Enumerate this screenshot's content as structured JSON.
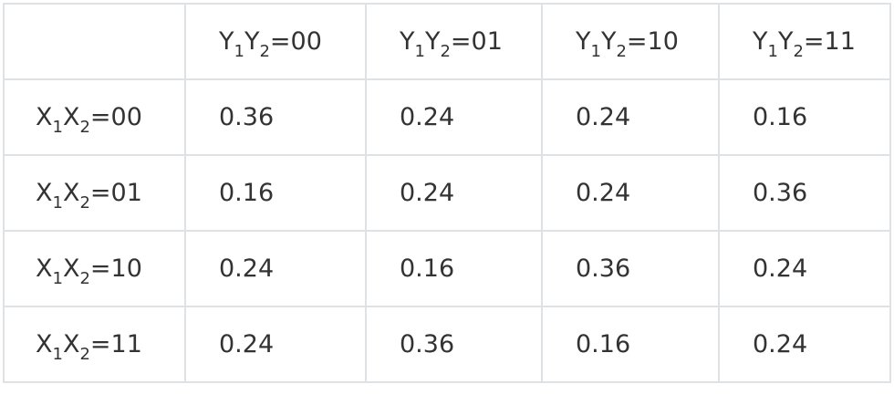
{
  "table": {
    "columns": [
      [
        "Y",
        "1",
        "Y",
        "2",
        "=00"
      ],
      [
        "Y",
        "1",
        "Y",
        "2",
        "=01"
      ],
      [
        "Y",
        "1",
        "Y",
        "2",
        "=10"
      ],
      [
        "Y",
        "1",
        "Y",
        "2",
        "=11"
      ]
    ],
    "rows": [
      {
        "label": [
          "X",
          "1",
          "X",
          "2",
          "=00"
        ],
        "cells": [
          0.36,
          0.24,
          0.24,
          0.16
        ]
      },
      {
        "label": [
          "X",
          "1",
          "X",
          "2",
          "=01"
        ],
        "cells": [
          0.16,
          0.24,
          0.24,
          0.36
        ]
      },
      {
        "label": [
          "X",
          "1",
          "X",
          "2",
          "=10"
        ],
        "cells": [
          0.24,
          0.16,
          0.36,
          0.24
        ]
      },
      {
        "label": [
          "X",
          "1",
          "X",
          "2",
          "=11"
        ],
        "cells": [
          0.24,
          0.36,
          0.16,
          0.24
        ]
      }
    ]
  }
}
